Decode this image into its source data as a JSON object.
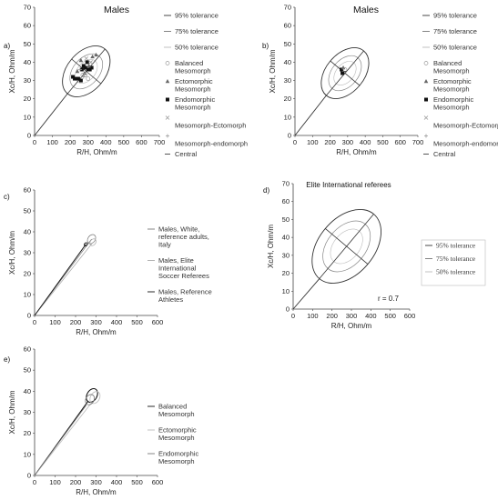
{
  "chart_data": [
    {
      "panel_label": "a)",
      "type": "scatter",
      "title": "Males",
      "xlabel": "R/H, Ohm/m",
      "ylabel": "Xc/H, Ohm/m",
      "xlim": [
        0,
        700
      ],
      "ylim": [
        0,
        70
      ],
      "xticks": [
        "0",
        "100",
        "200",
        "300",
        "400",
        "500",
        "600",
        "700"
      ],
      "yticks": [
        "0",
        "10",
        "20",
        "30",
        "40",
        "50",
        "60",
        "70"
      ],
      "legend_position": "right",
      "legend": [
        {
          "label": "95% tolerance",
          "color": "#333333"
        },
        {
          "label": "75% tolerance",
          "color": "#777777"
        },
        {
          "label": "50% tolerance",
          "color": "#bbbbbb"
        },
        {
          "label": "Balanced Mesomorph",
          "color": "#999999"
        },
        {
          "label": "Ectomorphic Mesomorph",
          "color": "#666666"
        },
        {
          "label": "Endomorphic Mesomorph",
          "color": "#111111"
        },
        {
          "label": "Mesomorph-Ectomorph",
          "color": "#999999"
        },
        {
          "label": "Mesomorph-endomorph",
          "color": "#999999"
        },
        {
          "label": "Central",
          "color": "#555555"
        }
      ],
      "ellipse_center": [
        290,
        35
      ],
      "series": [
        {
          "name": "Endomorphic Mesomorph",
          "points": [
            [
              215,
              32
            ],
            [
              225,
              31
            ],
            [
              245,
              31
            ],
            [
              265,
              36
            ],
            [
              275,
              38
            ],
            [
              285,
              37
            ],
            [
              295,
              40
            ],
            [
              300,
              36
            ],
            [
              310,
              36
            ],
            [
              320,
              37
            ],
            [
              260,
              30
            ]
          ]
        },
        {
          "name": "Ectomorphic Mesomorph",
          "points": [
            [
              325,
              43
            ],
            [
              345,
              44
            ],
            [
              260,
              41
            ],
            [
              240,
              35
            ],
            [
              305,
              38
            ],
            [
              280,
              34
            ]
          ]
        },
        {
          "name": "Balanced Mesomorph",
          "points": [
            [
              285,
              33
            ],
            [
              300,
              31
            ],
            [
              270,
              33
            ]
          ]
        },
        {
          "name": "Mesomorph-Ectomorph",
          "points": [
            [
              315,
              40
            ],
            [
              290,
              42
            ]
          ]
        },
        {
          "name": "Mesomorph-endomorph",
          "points": [
            [
              255,
              36
            ],
            [
              275,
              32
            ]
          ]
        }
      ]
    },
    {
      "panel_label": "b)",
      "type": "scatter",
      "title": "Males",
      "xlabel": "R/H, Ohm/m",
      "ylabel": "Xc/H, Ohm/m",
      "xlim": [
        0,
        700
      ],
      "ylim": [
        0,
        70
      ],
      "xticks": [
        "0",
        "100",
        "200",
        "300",
        "400",
        "500",
        "600",
        "700"
      ],
      "yticks": [
        "0",
        "10",
        "20",
        "30",
        "40",
        "50",
        "60",
        "70"
      ],
      "legend_position": "right",
      "legend": [
        {
          "label": "95% tolerance",
          "color": "#333333"
        },
        {
          "label": "75% tolerance",
          "color": "#777777"
        },
        {
          "label": "50% tolerance",
          "color": "#bbbbbb"
        },
        {
          "label": "Balanced Mesomorph",
          "color": "#999999"
        },
        {
          "label": "Ectomorphic Mesomorph",
          "color": "#666666"
        },
        {
          "label": "Endomorphic Mesomorph",
          "color": "#111111"
        },
        {
          "label": "Mesomorph-Ectomorph",
          "color": "#999999"
        },
        {
          "label": "Mesomorph-endomorph",
          "color": "#999999"
        },
        {
          "label": "Central",
          "color": "#555555"
        }
      ],
      "ellipse_center": [
        285,
        34
      ],
      "series": [
        {
          "name": "Endomorphic Mesomorph",
          "points": [
            [
              265,
              36
            ],
            [
              270,
              34
            ]
          ]
        },
        {
          "name": "Ectomorphic Mesomorph",
          "points": [
            [
              275,
              37
            ]
          ]
        },
        {
          "name": "Balanced Mesomorph",
          "points": [
            [
              285,
              36
            ]
          ]
        },
        {
          "name": "Central",
          "points": [
            [
              280,
              35
            ]
          ]
        }
      ]
    },
    {
      "panel_label": "c)",
      "type": "line",
      "xlabel": "R/H, Ohm/m",
      "ylabel": "Xc/H, Ohm/m",
      "xlim": [
        0,
        600
      ],
      "ylim": [
        0,
        60
      ],
      "xticks": [
        "0",
        "100",
        "200",
        "300",
        "400",
        "500",
        "600"
      ],
      "yticks": [
        "0",
        "10",
        "20",
        "30",
        "40",
        "50",
        "60"
      ],
      "legend_position": "right",
      "legend": [
        {
          "label": "Males, White, reference adults, Italy",
          "color": "#777777"
        },
        {
          "label": "Males, Elite International Soccer Referees",
          "color": "#aaaaaa"
        },
        {
          "label": "Males, Reference Athletes",
          "color": "#111111"
        }
      ],
      "series": [
        {
          "name": "Males, White, reference adults, Italy",
          "center": [
            278,
            36.5
          ]
        },
        {
          "name": "Males, Elite International Soccer Referees",
          "center": [
            285,
            35
          ]
        },
        {
          "name": "Males, Reference Athletes",
          "center": [
            250,
            34
          ]
        }
      ]
    },
    {
      "panel_label": "d)",
      "type": "line",
      "title": "Elite International referees",
      "xlabel": "R/H, Ohm/m",
      "ylabel": "Xc/H, Ohm/m",
      "xlim": [
        0,
        600
      ],
      "ylim": [
        0,
        70
      ],
      "xticks": [
        "0",
        "100",
        "200",
        "300",
        "400",
        "500",
        "600"
      ],
      "yticks": [
        "0",
        "10",
        "20",
        "30",
        "40",
        "50",
        "60",
        "70"
      ],
      "legend_position": "right",
      "legend": [
        {
          "label": "95% tolerance",
          "color": "#333333"
        },
        {
          "label": "75% tolerance",
          "color": "#777777"
        },
        {
          "label": "50% tolerance",
          "color": "#bbbbbb"
        }
      ],
      "annotation": "r = 0.7",
      "ellipse_center": [
        275,
        35
      ]
    },
    {
      "panel_label": "e)",
      "type": "line",
      "xlabel": "R/H, Ohm/m",
      "ylabel": "Xc/H, Ohm/m",
      "xlim": [
        0,
        600
      ],
      "ylim": [
        0,
        60
      ],
      "xticks": [
        "0",
        "100",
        "200",
        "300",
        "400",
        "500",
        "600"
      ],
      "yticks": [
        "0",
        "10",
        "20",
        "30",
        "40",
        "50",
        "60"
      ],
      "legend_position": "right",
      "legend": [
        {
          "label": "Balanced Mesomorph",
          "color": "#111111"
        },
        {
          "label": "Ectomorphic Mesomorph",
          "color": "#bbbbbb"
        },
        {
          "label": "Endomorphic Mesomorph",
          "color": "#777777"
        }
      ],
      "series": [
        {
          "name": "Balanced Mesomorph",
          "center": [
            280,
            38
          ]
        },
        {
          "name": "Ectomorphic Mesomorph",
          "center": [
            295,
            37
          ]
        },
        {
          "name": "Endomorphic Mesomorph",
          "center": [
            270,
            36
          ]
        }
      ]
    }
  ]
}
